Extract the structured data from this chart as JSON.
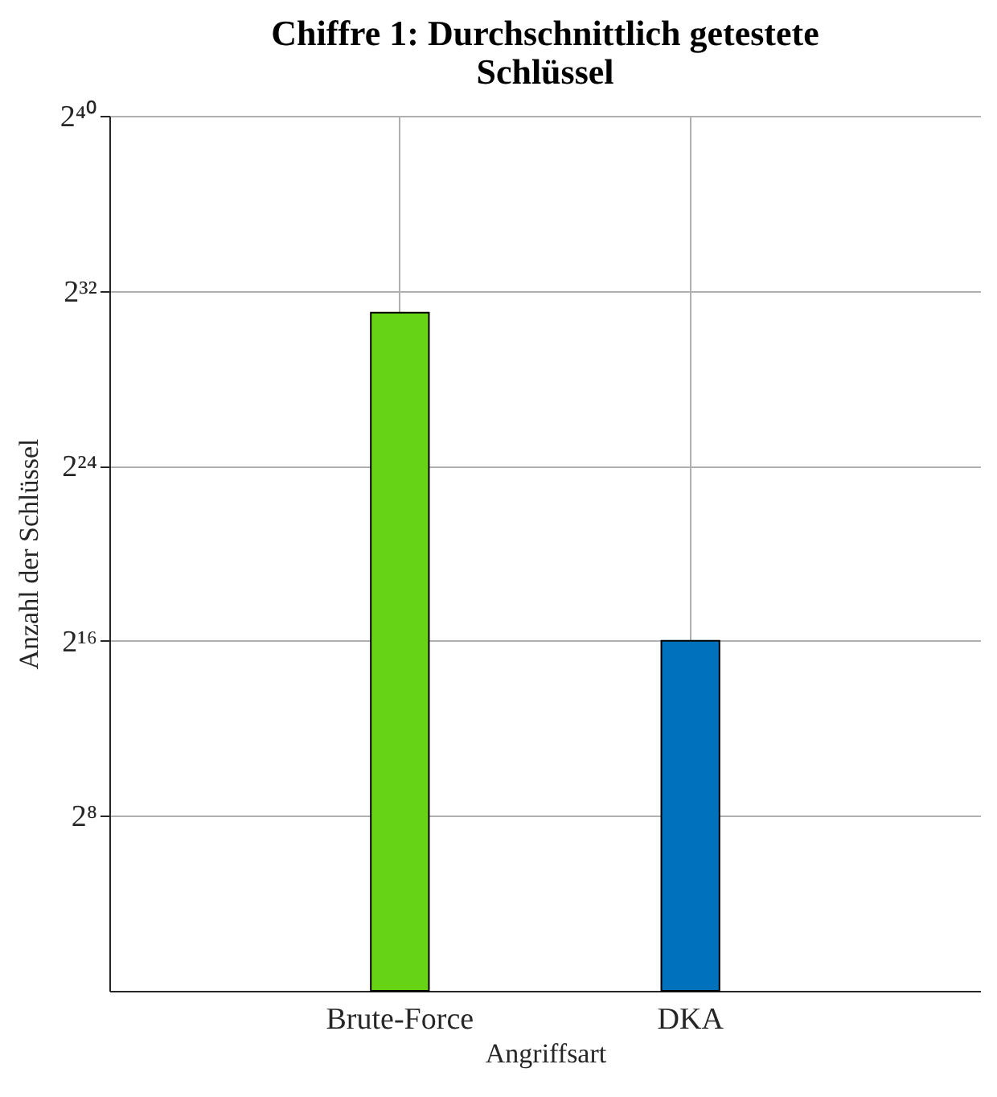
{
  "chart_data": {
    "type": "bar",
    "title": "Chiffre 1: Durchschnittlich getestete Schlüssel",
    "xlabel": "Angriffsart",
    "ylabel": "Anzahl der Schlüssel",
    "categories": [
      "Brute-Force",
      "DKA"
    ],
    "values": [
      2147483648,
      65536
    ],
    "colors": [
      "#66d414",
      "#0072bd"
    ],
    "log": true,
    "grid": true,
    "ylim": [
      1,
      1099511627776
    ],
    "yticks": [
      {
        "value": 256,
        "label": "2⁸"
      },
      {
        "value": 65536,
        "label": "2¹⁶"
      },
      {
        "value": 16777216,
        "label": "2²⁴"
      },
      {
        "value": 4294967296,
        "label": "2³²"
      },
      {
        "value": 1099511627776,
        "label": "2⁴⁰"
      }
    ]
  }
}
